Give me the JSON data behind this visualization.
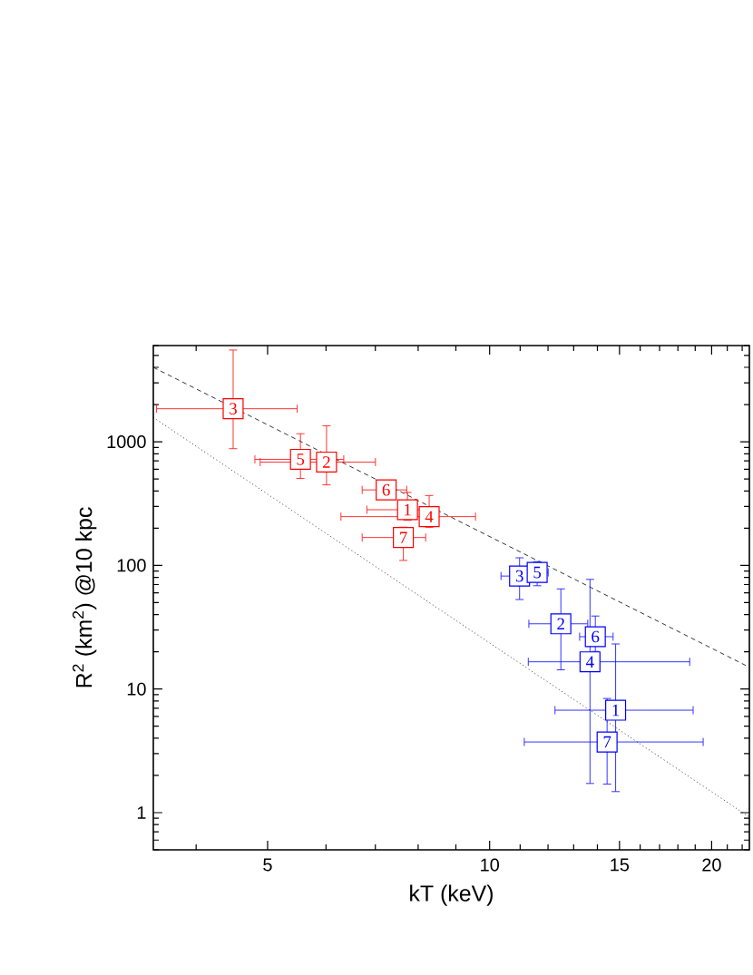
{
  "chart_data": {
    "type": "scatter",
    "xlabel": "kT (keV)",
    "ylabel": "R$^{2}$ (km$^{2}$) @10 kpc",
    "log": "xy",
    "xlim": [
      3.5,
      22.5
    ],
    "ylim": [
      0.5,
      6000
    ],
    "xticks": [
      5,
      10,
      15,
      20
    ],
    "yticks": [
      1,
      10,
      100,
      1000
    ],
    "marker": "square",
    "series": [
      {
        "color": "#ff0000",
        "x": [
          7.74,
          6.01,
          4.49,
          8.28,
          5.54,
          7.24,
          7.64
        ],
        "values": [
          282,
          685,
          1850,
          248,
          721,
          408,
          168
        ],
        "xerrors": [
          [
            6.81,
            8.45
          ],
          [
            4.88,
            7.01
          ],
          [
            3.53,
            5.49
          ],
          [
            6.28,
            9.58
          ],
          [
            4.8,
            6.35
          ],
          [
            6.71,
            7.73
          ],
          [
            6.71,
            8.2
          ]
        ],
        "errors": [
          [
            230,
            392
          ],
          [
            445,
            1356
          ],
          [
            873,
            5560
          ],
          [
            202,
            370
          ],
          [
            502,
            1170
          ],
          null,
          [
            109,
            205
          ]
        ]
      },
      {
        "color": "#0000ff",
        "x": [
          14.82,
          12.49,
          10.98,
          13.68,
          11.6,
          13.91,
          14.43
        ],
        "values": [
          6.74,
          33.7,
          82,
          16.6,
          87.7,
          26.5,
          3.73
        ],
        "xerrors": [
          [
            12.25,
            18.9
          ],
          [
            11.29,
            13.6
          ],
          [
            10.35,
            11.38
          ],
          [
            11.27,
            18.7
          ],
          [
            11.16,
            12.02
          ],
          [
            13.23,
            14.72
          ],
          [
            11.13,
            19.5
          ]
        ],
        "errors": [
          [
            1.47,
            23.3
          ],
          [
            14.2,
            65
          ],
          [
            52.6,
            116
          ],
          [
            1.71,
            77.6
          ],
          [
            68,
            108
          ],
          [
            20,
            39.2
          ],
          [
            1.69,
            8.44
          ]
        ]
      },
      {
        "type": "line",
        "color": "#000000",
        "line_style": "dashed",
        "marker": "none",
        "x": [
          3.5,
          22.5
        ],
        "values": [
          4000,
          15
        ]
      },
      {
        "type": "line",
        "color": "#000000",
        "line_style": "dotted",
        "marker": "none",
        "x": [
          3.5,
          22.5
        ],
        "values": [
          1570,
          0.92
        ]
      }
    ],
    "annotations": [
      {
        "text": "1",
        "x": 7.74,
        "y": 282
      },
      {
        "text": "2",
        "x": 6.01,
        "y": 685
      },
      {
        "text": "3",
        "x": 4.49,
        "y": 1850
      },
      {
        "text": "4",
        "x": 8.28,
        "y": 248
      },
      {
        "text": "5",
        "x": 5.54,
        "y": 721
      },
      {
        "text": "6",
        "x": 7.24,
        "y": 408
      },
      {
        "text": "7",
        "x": 7.64,
        "y": 168
      },
      {
        "text": "1",
        "x": 14.82,
        "y": 6.74
      },
      {
        "text": "2",
        "x": 12.49,
        "y": 33.7
      },
      {
        "text": "3",
        "x": 10.98,
        "y": 82
      },
      {
        "text": "4",
        "x": 13.68,
        "y": 16.6
      },
      {
        "text": "5",
        "x": 11.6,
        "y": 87.7
      },
      {
        "text": "6",
        "x": 13.91,
        "y": 26.5
      },
      {
        "text": "7",
        "x": 14.43,
        "y": 3.73
      }
    ]
  }
}
